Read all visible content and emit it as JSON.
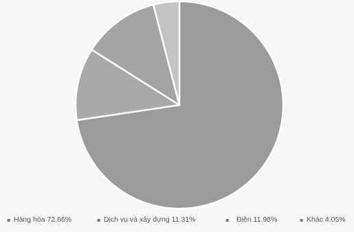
{
  "chart_data": {
    "type": "pie",
    "title": "",
    "legend_position": "bottom",
    "slices": [
      {
        "label": "Hàng hóa",
        "value": 72.66,
        "legend_label": "Hàng hóa 72.66%",
        "color": "#9b9b9b"
      },
      {
        "label": "Dịch vụ và xây dựng",
        "value": 11.31,
        "legend_label": "Dịch vụ và xây dựng 11.31%",
        "color": "#a9a9a9"
      },
      {
        "label": "Điện",
        "value": 11.98,
        "legend_label": "Điện 11.98%",
        "color": "#a4a4a4"
      },
      {
        "label": "Khác",
        "value": 4.05,
        "legend_label": "Khác 4.05%",
        "color": "#c4c4c4"
      }
    ],
    "legend_marker": "▪"
  }
}
